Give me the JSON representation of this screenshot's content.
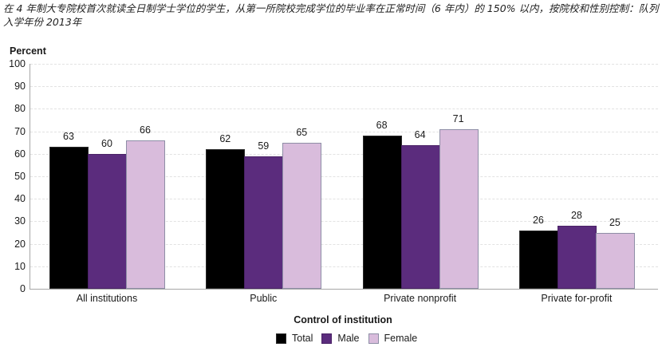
{
  "title": "在 4 年制大专院校首次就读全日制学士学位的学生，从第一所院校完成学位的毕业率在正常时间（6 年内）的 150% 以内，按院校和性别控制：队列入学年份 2013年",
  "chart_data": {
    "type": "bar",
    "title": "在 4 年制大专院校首次就读全日制学士学位的学生，从第一所院校完成学位的毕业率在正常时间（6 年内）的 150% 以内，按院校和性别控制：队列入学年份 2013年",
    "xlabel": "Control of institution",
    "ylabel": "Percent",
    "ylim": [
      0,
      100
    ],
    "yticks": [
      0,
      10,
      20,
      30,
      40,
      50,
      60,
      70,
      80,
      90,
      100
    ],
    "grid": true,
    "legend_position": "bottom",
    "categories": [
      "All institutions",
      "Public",
      "Private nonprofit",
      "Private for-profit"
    ],
    "series": [
      {
        "name": "Total",
        "color": "#000000",
        "values": [
          63,
          62,
          68,
          26
        ]
      },
      {
        "name": "Male",
        "color": "#5b2c7d",
        "values": [
          60,
          59,
          64,
          28
        ]
      },
      {
        "name": "Female",
        "color": "#d9bcdc",
        "values": [
          66,
          65,
          71,
          25
        ]
      }
    ]
  }
}
